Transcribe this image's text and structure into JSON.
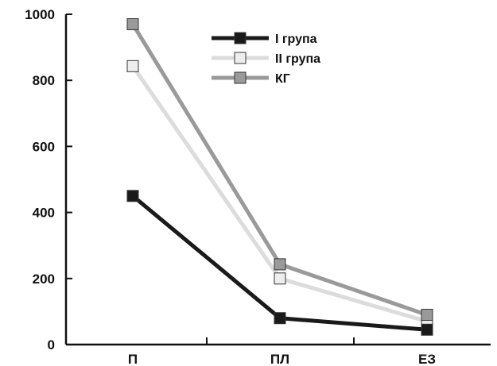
{
  "chart_data": {
    "type": "line",
    "categories": [
      "П",
      "ПЛ",
      "ЕЗ"
    ],
    "ylim": [
      0,
      1000
    ],
    "yticks": [
      0,
      200,
      400,
      600,
      800,
      1000
    ],
    "grid": false,
    "legend_position": "top-center",
    "series": [
      {
        "name": "I група",
        "values": [
          450,
          80,
          45
        ],
        "color": "#1a1a1a",
        "marker_fill": "#1a1a1a"
      },
      {
        "name": "II група",
        "values": [
          843,
          200,
          70
        ],
        "color": "#dcdcdc",
        "marker_fill": "#eeeeee"
      },
      {
        "name": "КГ",
        "values": [
          970,
          243,
          90
        ],
        "color": "#9a9a9a",
        "marker_fill": "#9a9a9a"
      }
    ]
  }
}
